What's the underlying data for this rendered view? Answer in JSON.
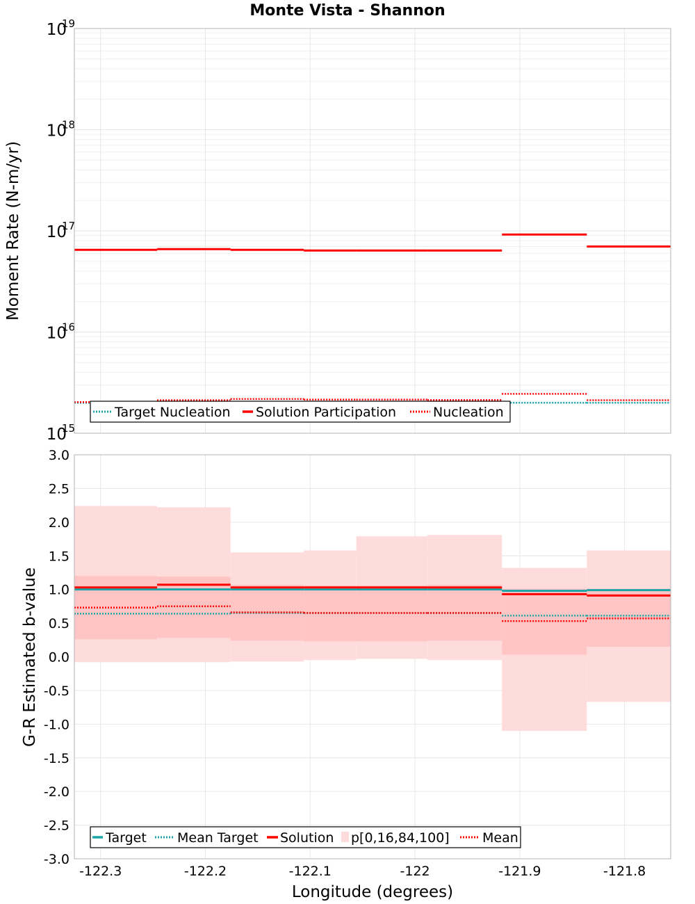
{
  "chart_data": [
    {
      "type": "line",
      "title": "Monte Vista - Shannon",
      "ylabel": "Moment Rate (N-m/yr)",
      "yscale": "log",
      "ylim": [
        1000000000000000.0,
        1e+19
      ],
      "xlim": [
        -122.325,
        -121.756
      ],
      "y_tick_labels": [
        {
          "base": "10",
          "exp": "15",
          "value": 1000000000000000.0
        },
        {
          "base": "10",
          "exp": "16",
          "value": 1e+16
        },
        {
          "base": "10",
          "exp": "17",
          "value": 1e+17
        },
        {
          "base": "10",
          "exp": "18",
          "value": 1e+18
        },
        {
          "base": "10",
          "exp": "19",
          "value": 1e+19
        }
      ],
      "bins": [
        {
          "x0": -122.325,
          "x1": -122.246
        },
        {
          "x0": -122.246,
          "x1": -122.176
        },
        {
          "x0": -122.176,
          "x1": -122.106
        },
        {
          "x0": -122.106,
          "x1": -122.056
        },
        {
          "x0": -122.056,
          "x1": -121.988
        },
        {
          "x0": -121.988,
          "x1": -121.917
        },
        {
          "x0": -121.917,
          "x1": -121.836
        },
        {
          "x0": -121.836,
          "x1": -121.756
        }
      ],
      "series": [
        {
          "name": "Target Nucleation",
          "style": "dotted",
          "color": "#1aa6a6",
          "values": [
            2000000000000000.0,
            2000000000000000.0,
            2000000000000000.0,
            2000000000000000.0,
            2000000000000000.0,
            2000000000000000.0,
            2000000000000000.0,
            2000000000000000.0
          ]
        },
        {
          "name": "Solution Participation",
          "style": "solid",
          "color": "#ff0000",
          "values": [
            6.5e+16,
            6.6e+16,
            6.5e+16,
            6.4e+16,
            6.4e+16,
            6.4e+16,
            9.2e+16,
            7e+16
          ]
        },
        {
          "name": "Nucleation",
          "style": "dotted",
          "color": "#ff0000",
          "values": [
            2030000000000000.0,
            2120000000000000.0,
            2180000000000000.0,
            2150000000000000.0,
            2150000000000000.0,
            2130000000000000.0,
            2450000000000000.0,
            2120000000000000.0
          ]
        }
      ],
      "legend": [
        "Target Nucleation",
        "Solution Participation",
        "Nucleation"
      ]
    },
    {
      "type": "line",
      "xlabel": "Longitude (degrees)",
      "ylabel": "G-R Estimated b-value",
      "ylim": [
        -3.0,
        3.0
      ],
      "xlim": [
        -122.325,
        -121.756
      ],
      "x_ticks": [
        {
          "label": "-122.3",
          "value": -122.3
        },
        {
          "label": "-122.2",
          "value": -122.2
        },
        {
          "label": "-122.1",
          "value": -122.1
        },
        {
          "label": "-122",
          "value": -122.0
        },
        {
          "label": "-121.9",
          "value": -121.9
        },
        {
          "label": "-121.8",
          "value": -121.8
        }
      ],
      "y_ticks": [
        {
          "label": "3.0",
          "value": 3.0
        },
        {
          "label": "2.5",
          "value": 2.5
        },
        {
          "label": "2.0",
          "value": 2.0
        },
        {
          "label": "1.5",
          "value": 1.5
        },
        {
          "label": "1.0",
          "value": 1.0
        },
        {
          "label": "0.5",
          "value": 0.5
        },
        {
          "label": "0.0",
          "value": 0.0
        },
        {
          "label": "-0.5",
          "value": -0.5
        },
        {
          "label": "-1.0",
          "value": -1.0
        },
        {
          "label": "-1.5",
          "value": -1.5
        },
        {
          "label": "-2.0",
          "value": -2.0
        },
        {
          "label": "-2.5",
          "value": -2.5
        },
        {
          "label": "-3.0",
          "value": -3.0
        }
      ],
      "bins": [
        {
          "x0": -122.325,
          "x1": -122.246
        },
        {
          "x0": -122.246,
          "x1": -122.176
        },
        {
          "x0": -122.176,
          "x1": -122.106
        },
        {
          "x0": -122.106,
          "x1": -122.056
        },
        {
          "x0": -122.056,
          "x1": -121.988
        },
        {
          "x0": -121.988,
          "x1": -121.917
        },
        {
          "x0": -121.917,
          "x1": -121.836
        },
        {
          "x0": -121.836,
          "x1": -121.756
        }
      ],
      "bands": {
        "name": "p[0,16,84,100]",
        "p0": [
          -0.08,
          -0.08,
          -0.07,
          -0.05,
          -0.03,
          -0.05,
          -1.1,
          -0.67
        ],
        "p16": [
          0.26,
          0.28,
          0.24,
          0.23,
          0.23,
          0.24,
          0.03,
          0.15
        ],
        "p84": [
          1.2,
          1.19,
          1.07,
          1.06,
          1.06,
          1.07,
          1.01,
          1.01
        ],
        "p100": [
          2.24,
          2.22,
          1.55,
          1.58,
          1.79,
          1.81,
          1.32,
          1.58
        ]
      },
      "series": [
        {
          "name": "Target",
          "style": "solid",
          "color": "#1aa6a6",
          "values": [
            1.0,
            1.0,
            1.0,
            1.0,
            1.0,
            1.0,
            0.98,
            0.99
          ]
        },
        {
          "name": "Mean Target",
          "style": "dotted",
          "color": "#1aa6a6",
          "values": [
            0.64,
            0.64,
            0.65,
            0.65,
            0.65,
            0.65,
            0.61,
            0.61
          ]
        },
        {
          "name": "Solution",
          "style": "solid",
          "color": "#ff0000",
          "values": [
            1.03,
            1.07,
            1.03,
            1.03,
            1.03,
            1.03,
            0.93,
            0.91
          ]
        },
        {
          "name": "Mean",
          "style": "dotted",
          "color": "#ff0000",
          "values": [
            0.73,
            0.75,
            0.66,
            0.65,
            0.65,
            0.65,
            0.53,
            0.57
          ]
        }
      ],
      "legend": [
        "Target",
        "Mean Target",
        "Solution",
        "p[0,16,84,100]",
        "Mean"
      ]
    }
  ],
  "colors": {
    "teal": "#1aa6a6",
    "red": "#ff0000",
    "band_outer": "#ffdcdc",
    "band_inner": "#ffc4c4"
  }
}
